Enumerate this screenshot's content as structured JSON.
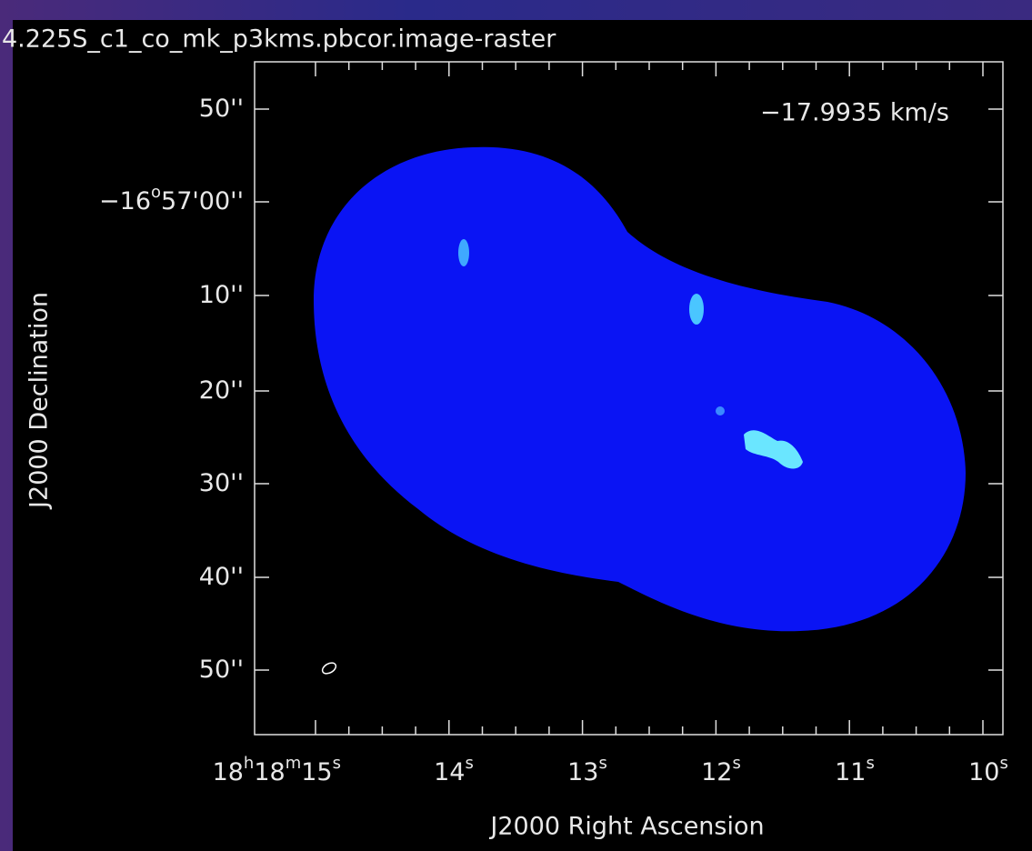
{
  "title": "4.225S_c1_co_mk_p3kms.pbcor.image-raster",
  "annotation": "−17.9935 km/s",
  "y_axis": {
    "label": "J2000 Declination",
    "ticks": [
      [
        "50''"
      ],
      [
        "−16",
        "o",
        "57'00''"
      ],
      [
        "10''"
      ],
      [
        "20''"
      ],
      [
        "30''"
      ],
      [
        "40''"
      ],
      [
        "50''"
      ]
    ]
  },
  "x_axis": {
    "label": "J2000 Right Ascension",
    "ticks": [
      [
        "18",
        "h",
        "18",
        "m",
        "15",
        "s"
      ],
      [
        "14",
        "s"
      ],
      [
        "13",
        "s"
      ],
      [
        "12",
        "s"
      ],
      [
        "11",
        "s"
      ],
      [
        "10",
        "s"
      ]
    ]
  }
}
